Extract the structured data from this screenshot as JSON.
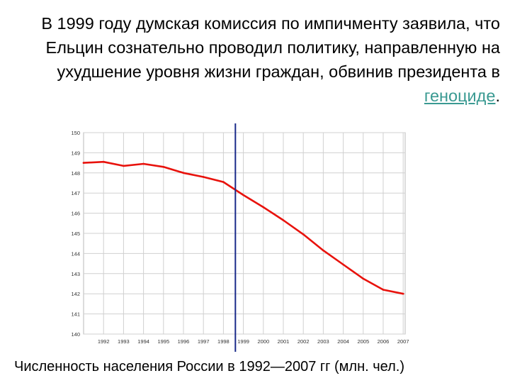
{
  "slide": {
    "text_parts": [
      "В 1999 году думская комиссия по импичменту заявила, что Ельцин сознательно проводил политику, направленную на ухудшение уровня жизни граждан, обвинив президента в ",
      "геноциде",
      "."
    ],
    "caption": "Численность населения России в 1992—2007 гг (млн. чел.)"
  },
  "colors": {
    "series": "#e8120c",
    "marker": "#1a2a8a",
    "grid": "#d0d0d0",
    "link": "#3a9a92"
  },
  "chart_data": {
    "type": "line",
    "title": "",
    "xlabel": "",
    "ylabel": "",
    "categories": [
      "1992",
      "1993",
      "1994",
      "1995",
      "1996",
      "1997",
      "1998",
      "1999",
      "2000",
      "2001",
      "2002",
      "2003",
      "2004",
      "2005",
      "2006",
      "2007"
    ],
    "x": [
      1991.0,
      1992,
      1993,
      1994,
      1995,
      1996,
      1997,
      1998,
      1999,
      2000,
      2001,
      2002,
      2003,
      2004,
      2005,
      2006,
      2007
    ],
    "series": [
      {
        "values": [
          148.5,
          148.55,
          148.35,
          148.45,
          148.3,
          148.0,
          147.8,
          147.55,
          146.9,
          146.3,
          145.65,
          144.95,
          144.15,
          143.45,
          142.75,
          142.2,
          142.0
        ]
      }
    ],
    "yticks": [
      "140",
      "141",
      "142",
      "143",
      "144",
      "145",
      "146",
      "147",
      "148",
      "149",
      "150"
    ],
    "ylim": [
      140,
      150
    ],
    "xlim": [
      1991.0,
      2007.1
    ],
    "grid": true,
    "marker_x": 1998.6
  }
}
